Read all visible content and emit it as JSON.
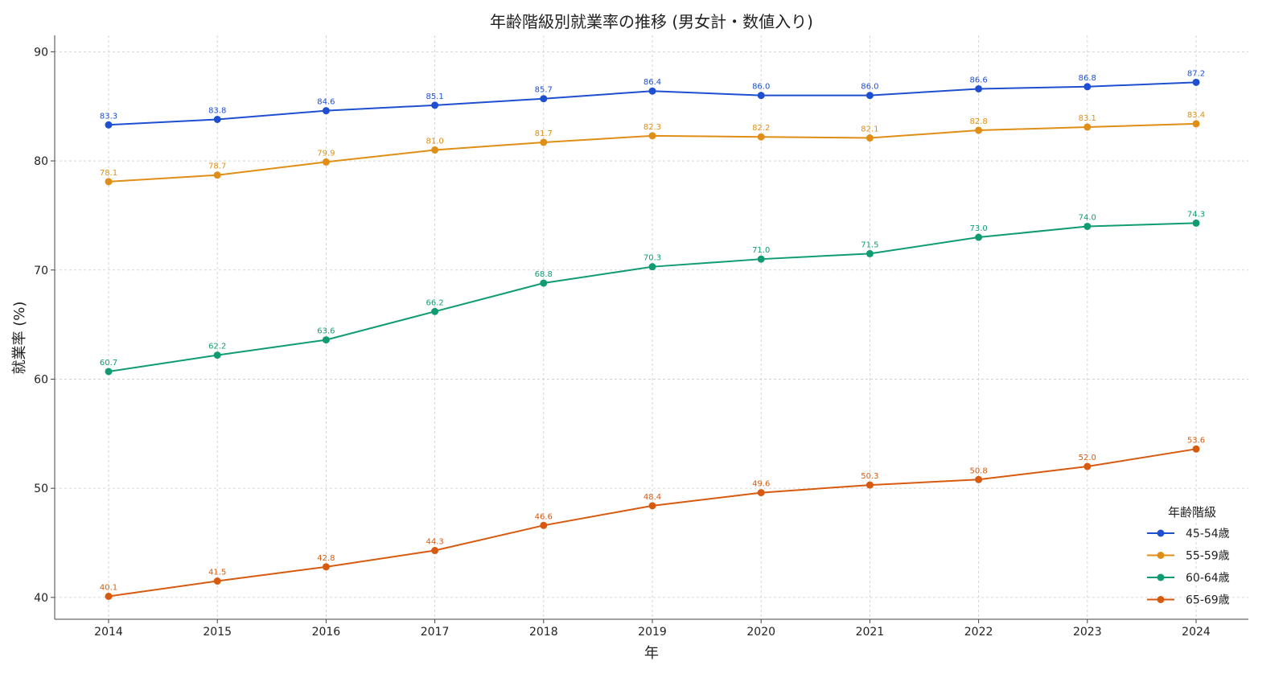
{
  "chart_data": {
    "type": "line",
    "title": "年齢階級別就業率の推移 (男女計・数値入り)",
    "xlabel": "年",
    "ylabel": "就業率 (%)",
    "x": [
      2014,
      2015,
      2016,
      2017,
      2018,
      2019,
      2020,
      2021,
      2022,
      2023,
      2024
    ],
    "ylim": [
      38,
      91.5
    ],
    "yticks": [
      40,
      50,
      60,
      70,
      80,
      90
    ],
    "grid": true,
    "legend_title": "年齢階級",
    "legend_position": "lower-right",
    "series": [
      {
        "name": "45-54歳",
        "color": "#1f4fd1",
        "values": [
          83.3,
          83.8,
          84.6,
          85.1,
          85.7,
          86.4,
          86.0,
          86.0,
          86.6,
          86.8,
          87.2
        ]
      },
      {
        "name": "55-59歳",
        "color": "#e08e16",
        "values": [
          78.1,
          78.7,
          79.9,
          81.0,
          81.7,
          82.3,
          82.2,
          82.1,
          82.8,
          83.1,
          83.4
        ]
      },
      {
        "name": "60-64歳",
        "color": "#109c72",
        "values": [
          60.7,
          62.2,
          63.6,
          66.2,
          68.8,
          70.3,
          71.0,
          71.5,
          73.0,
          74.0,
          74.3
        ]
      },
      {
        "name": "65-69歳",
        "color": "#d85a0f",
        "values": [
          40.1,
          41.5,
          42.8,
          44.3,
          46.6,
          48.4,
          49.6,
          50.3,
          50.8,
          52.0,
          53.6
        ]
      }
    ]
  }
}
